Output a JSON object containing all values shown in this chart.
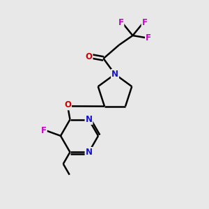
{
  "background_color": "#e8e8e8",
  "bond_color": "#000000",
  "bond_width": 1.8,
  "atom_colors": {
    "C": "#000000",
    "N": "#1414cc",
    "O": "#cc0000",
    "F": "#cc00cc"
  },
  "font_size_atom": 8.5,
  "fig_width": 3.0,
  "fig_height": 3.0
}
